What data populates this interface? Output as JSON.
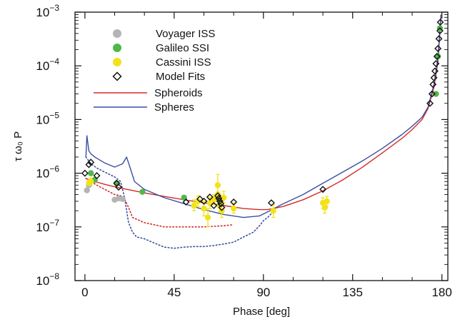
{
  "chart_data": {
    "type": "scatter",
    "title": "",
    "xlabel": "Phase [deg]",
    "ylabel": "τ ω₀ P",
    "xlim": [
      -5,
      183
    ],
    "ylim": [
      1e-08,
      0.001
    ],
    "yscale": "log",
    "x_ticks": [
      0,
      45,
      90,
      135,
      180
    ],
    "y_ticks": [
      {
        "base": "10",
        "exp": "-8",
        "value": 1e-08
      },
      {
        "base": "10",
        "exp": "-7",
        "value": 1e-07
      },
      {
        "base": "10",
        "exp": "-6",
        "value": 1e-06
      },
      {
        "base": "10",
        "exp": "-5",
        "value": 1e-05
      },
      {
        "base": "10",
        "exp": "-4",
        "value": 0.0001
      },
      {
        "base": "10",
        "exp": "-3",
        "value": 0.001
      }
    ],
    "legend": {
      "position": "top-left",
      "entries": [
        {
          "label": "Voyager ISS",
          "marker": "circle",
          "color": "#b4b4b4"
        },
        {
          "label": "Galileo SSI",
          "marker": "circle",
          "color": "#4fb84a"
        },
        {
          "label": "Cassini ISS",
          "marker": "circle",
          "color": "#f2e21a"
        },
        {
          "label": "Model Fits",
          "marker": "diamond-open",
          "color": "#111111"
        },
        {
          "label": "Spheroids",
          "marker": "line",
          "color": "#d42a2a"
        },
        {
          "label": "Spheres",
          "marker": "line",
          "color": "#3a4fa0"
        }
      ]
    },
    "series": [
      {
        "name": "Voyager ISS",
        "kind": "points",
        "color": "#b4b4b4",
        "x": [
          1,
          2,
          15,
          17,
          19
        ],
        "y": [
          4.8e-07,
          6e-07,
          3.2e-07,
          3.4e-07,
          3.3e-07
        ]
      },
      {
        "name": "Galileo SSI",
        "kind": "points",
        "color": "#4fb84a",
        "x": [
          3,
          5,
          16,
          29,
          50,
          177,
          178,
          179
        ],
        "y": [
          1e-06,
          7.5e-07,
          6.5e-07,
          4.5e-07,
          3.5e-07,
          3e-05,
          0.00015,
          0.0005
        ]
      },
      {
        "name": "Cassini ISS",
        "kind": "points",
        "color": "#f2e21a",
        "x": [
          2,
          3,
          55,
          57,
          60,
          62,
          63,
          65,
          67,
          67,
          68,
          69,
          70,
          75,
          95,
          120,
          121,
          122
        ],
        "y": [
          6.5e-07,
          7e-07,
          2.5e-07,
          3e-07,
          2.2e-07,
          1.5e-07,
          2.8e-07,
          3.2e-07,
          4e-07,
          6e-07,
          2.5e-07,
          2e-07,
          3.5e-07,
          2.2e-07,
          2e-07,
          2.8e-07,
          2.3e-07,
          3e-07
        ],
        "err_low": [
          5.5e-07,
          6e-07,
          2e-07,
          2.4e-07,
          1.6e-07,
          1e-07,
          2.2e-07,
          2.6e-07,
          3e-07,
          4.5e-07,
          1.9e-07,
          1.5e-07,
          2.8e-07,
          1.8e-07,
          1.5e-07,
          2.2e-07,
          1.8e-07,
          2.4e-07
        ],
        "err_high": [
          7.5e-07,
          8.2e-07,
          3.2e-07,
          3.8e-07,
          3e-07,
          2.2e-07,
          3.6e-07,
          4e-07,
          5.5e-07,
          9.5e-07,
          3.4e-07,
          2.8e-07,
          4.6e-07,
          2.8e-07,
          2.6e-07,
          3.5e-07,
          2.9e-07,
          3.7e-07
        ]
      },
      {
        "name": "Model Fits",
        "kind": "points",
        "color": "#111111",
        "x": [
          0,
          2,
          3,
          6,
          16,
          17,
          51,
          58,
          60,
          63,
          65,
          67,
          67.5,
          68,
          68.5,
          69,
          75,
          94,
          120,
          174,
          175,
          175.5,
          176,
          176.5,
          177,
          177.5,
          178,
          178.5,
          179,
          179.2
        ],
        "y": [
          1e-06,
          1.45e-06,
          1.6e-06,
          9e-07,
          6.5e-07,
          5.5e-07,
          2.9e-07,
          3.3e-07,
          3e-07,
          3.6e-07,
          2.5e-07,
          3.8e-07,
          3.4e-07,
          3e-07,
          2.7e-07,
          2.3e-07,
          2.9e-07,
          2.8e-07,
          5e-07,
          2e-05,
          3e-05,
          4.5e-05,
          6e-05,
          8e-05,
          0.00011,
          0.00015,
          0.00021,
          0.00032,
          0.00045,
          0.00065
        ]
      },
      {
        "name": "Spheroids",
        "kind": "line",
        "style": "solid",
        "color": "#d42a2a",
        "x": [
          0.5,
          2,
          5,
          10,
          15,
          20,
          25,
          30,
          40,
          50,
          60,
          70,
          80,
          88,
          92,
          100,
          110,
          120,
          130,
          140,
          150,
          160,
          165,
          170,
          173,
          176,
          178,
          179.5
        ],
        "y": [
          8e-07,
          7.6e-07,
          7e-07,
          6.2e-07,
          5.6e-07,
          5.1e-07,
          4.7e-07,
          4.3e-07,
          3.7e-07,
          3.2e-07,
          2.8e-07,
          2.5e-07,
          2.2e-07,
          2.1e-07,
          2.1e-07,
          2.4e-07,
          3.2e-07,
          4.7e-07,
          7.5e-07,
          1.3e-06,
          2.4e-06,
          4.5e-06,
          6.5e-06,
          1e-05,
          1.6e-05,
          4e-05,
          0.00012,
          0.0008
        ]
      },
      {
        "name": "Spheres",
        "kind": "line",
        "style": "solid",
        "color": "#3a4fa0",
        "x": [
          0.5,
          1,
          2,
          3,
          5,
          10,
          15,
          19,
          21,
          23,
          25,
          30,
          40,
          50,
          60,
          70,
          80,
          88,
          92,
          100,
          110,
          120,
          130,
          140,
          150,
          160,
          165,
          170,
          173,
          176,
          178,
          179.5
        ],
        "y": [
          2e-06,
          5e-06,
          2.6e-06,
          2.3e-06,
          2e-06,
          1.55e-06,
          1.3e-06,
          1.5e-06,
          2e-06,
          1.2e-06,
          7e-07,
          5e-07,
          3.5e-07,
          2.7e-07,
          2.1e-07,
          1.7e-07,
          1.5e-07,
          1.6e-07,
          1.9e-07,
          2.7e-07,
          4e-07,
          6.5e-07,
          1.05e-06,
          1.7e-06,
          2.9e-06,
          5.3e-06,
          7.5e-06,
          1.1e-05,
          1.7e-05,
          4.5e-05,
          0.00014,
          0.0009
        ]
      },
      {
        "name": "Spheroids (dotted)",
        "kind": "line",
        "style": "dotted",
        "color": "#d42a2a",
        "x": [
          0.5,
          3,
          6,
          10,
          15,
          18,
          20,
          22,
          24,
          30,
          40,
          50,
          60,
          70,
          75
        ],
        "y": [
          8e-07,
          7e-07,
          6e-07,
          5e-07,
          4e-07,
          3.8e-07,
          3.3e-07,
          2.3e-07,
          1.5e-07,
          1.2e-07,
          1e-07,
          1e-07,
          1e-07,
          1.05e-07,
          1.1e-07
        ]
      },
      {
        "name": "Spheres (dotted)",
        "kind": "line",
        "style": "dotted",
        "color": "#3a4fa0",
        "x": [
          0.5,
          3,
          6,
          10,
          15,
          18,
          20,
          22,
          24,
          26,
          30,
          35,
          40,
          45,
          50,
          55,
          60,
          65,
          70,
          75,
          80,
          85,
          88,
          90,
          93,
          95
        ],
        "y": [
          2e-06,
          1.5e-06,
          1.25e-06,
          1.05e-06,
          8.5e-07,
          7e-07,
          3.5e-07,
          1.2e-07,
          8e-08,
          6.5e-08,
          6e-08,
          5e-08,
          4.2e-08,
          4e-08,
          4.2e-08,
          4.3e-08,
          4.3e-08,
          4.5e-08,
          4.8e-08,
          5.2e-08,
          6.5e-08,
          8e-08,
          1.05e-07,
          1.3e-07,
          1.6e-07,
          2e-07
        ]
      }
    ]
  }
}
